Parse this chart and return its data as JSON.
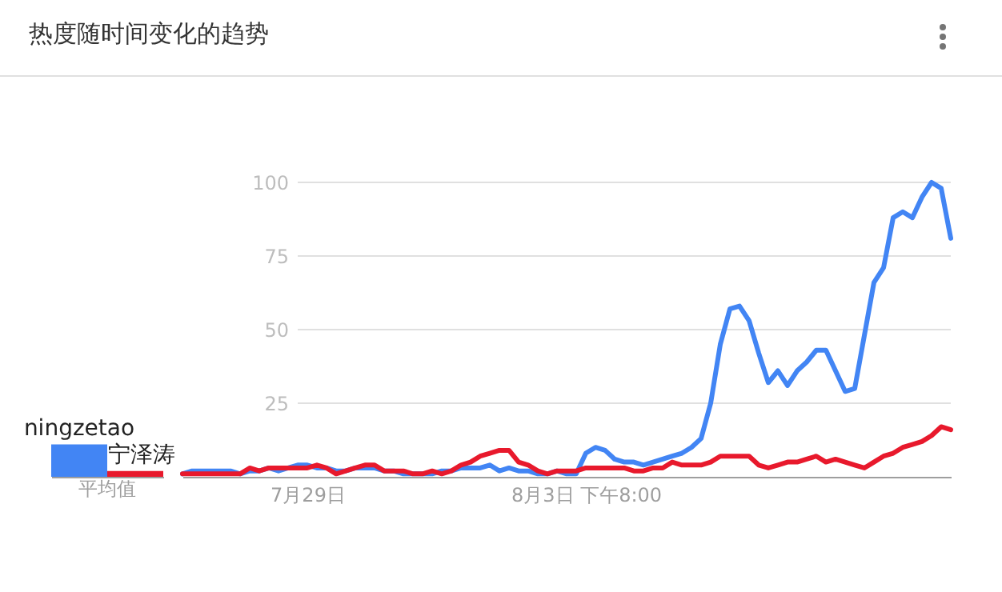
{
  "chart_data": [
    {
      "type": "bar",
      "title": "热度随时间变化的趋势",
      "categories": [
        "平均值"
      ],
      "series": [
        {
          "name": "ningzetao",
          "color": "#4285f4",
          "values": [
            11
          ]
        },
        {
          "name": "宁泽涛",
          "color": "#e8192c",
          "values": [
            2
          ]
        }
      ],
      "ylim": [
        0,
        100
      ],
      "tick_labels": "x"
    },
    {
      "type": "line",
      "categories": [
        null,
        null,
        null,
        null,
        null,
        null,
        null,
        null,
        null,
        null,
        null,
        null,
        null,
        "7月29日",
        null,
        null,
        null,
        null,
        null,
        null,
        null,
        null,
        null,
        null,
        null,
        null,
        null,
        null,
        null,
        null,
        null,
        null,
        null,
        null,
        null,
        null,
        null,
        null,
        null,
        null,
        null,
        null,
        "8月3日 下午8:00",
        null,
        null,
        null,
        null,
        null,
        null,
        null,
        null,
        null,
        null,
        null,
        null,
        null,
        null,
        null,
        null,
        null,
        null,
        null,
        null,
        null,
        null,
        null,
        null,
        null,
        null,
        null,
        null,
        null,
        null,
        null,
        null,
        null,
        null,
        null,
        null,
        null,
        null
      ],
      "series": [
        {
          "color": "#4285f4",
          "values": [
            1,
            2,
            2,
            2,
            2,
            2,
            1,
            2,
            2,
            3,
            2,
            3,
            4,
            4,
            3,
            3,
            2,
            2,
            3,
            3,
            3,
            2,
            2,
            1,
            1,
            1,
            1,
            2,
            2,
            3,
            3,
            3,
            4,
            2,
            3,
            2,
            2,
            1,
            1,
            2,
            1,
            1,
            8,
            10,
            9,
            6,
            5,
            5,
            4,
            5,
            6,
            7,
            8,
            10,
            13,
            25,
            45,
            57,
            58,
            53,
            42,
            32,
            36,
            31,
            36,
            39,
            43,
            43,
            36,
            29,
            30,
            48,
            66,
            71,
            88,
            90,
            88,
            95,
            100,
            98,
            81
          ]
        },
        {
          "color": "#e8192c",
          "values": [
            1,
            1,
            1,
            1,
            1,
            1,
            1,
            3,
            2,
            3,
            3,
            3,
            3,
            3,
            4,
            3,
            1,
            2,
            3,
            4,
            4,
            2,
            2,
            2,
            1,
            1,
            2,
            1,
            2,
            4,
            5,
            7,
            8,
            9,
            9,
            5,
            4,
            2,
            1,
            2,
            2,
            2,
            3,
            3,
            3,
            3,
            3,
            2,
            2,
            3,
            3,
            5,
            4,
            4,
            4,
            5,
            7,
            7,
            7,
            7,
            4,
            3,
            4,
            5,
            5,
            6,
            7,
            5,
            6,
            5,
            4,
            3,
            5,
            7,
            8,
            10,
            11,
            12,
            14,
            17,
            16
          ]
        }
      ],
      "ylim": [
        0,
        100
      ],
      "yticks": [
        25,
        50,
        75,
        100
      ],
      "grid": "y"
    }
  ]
}
